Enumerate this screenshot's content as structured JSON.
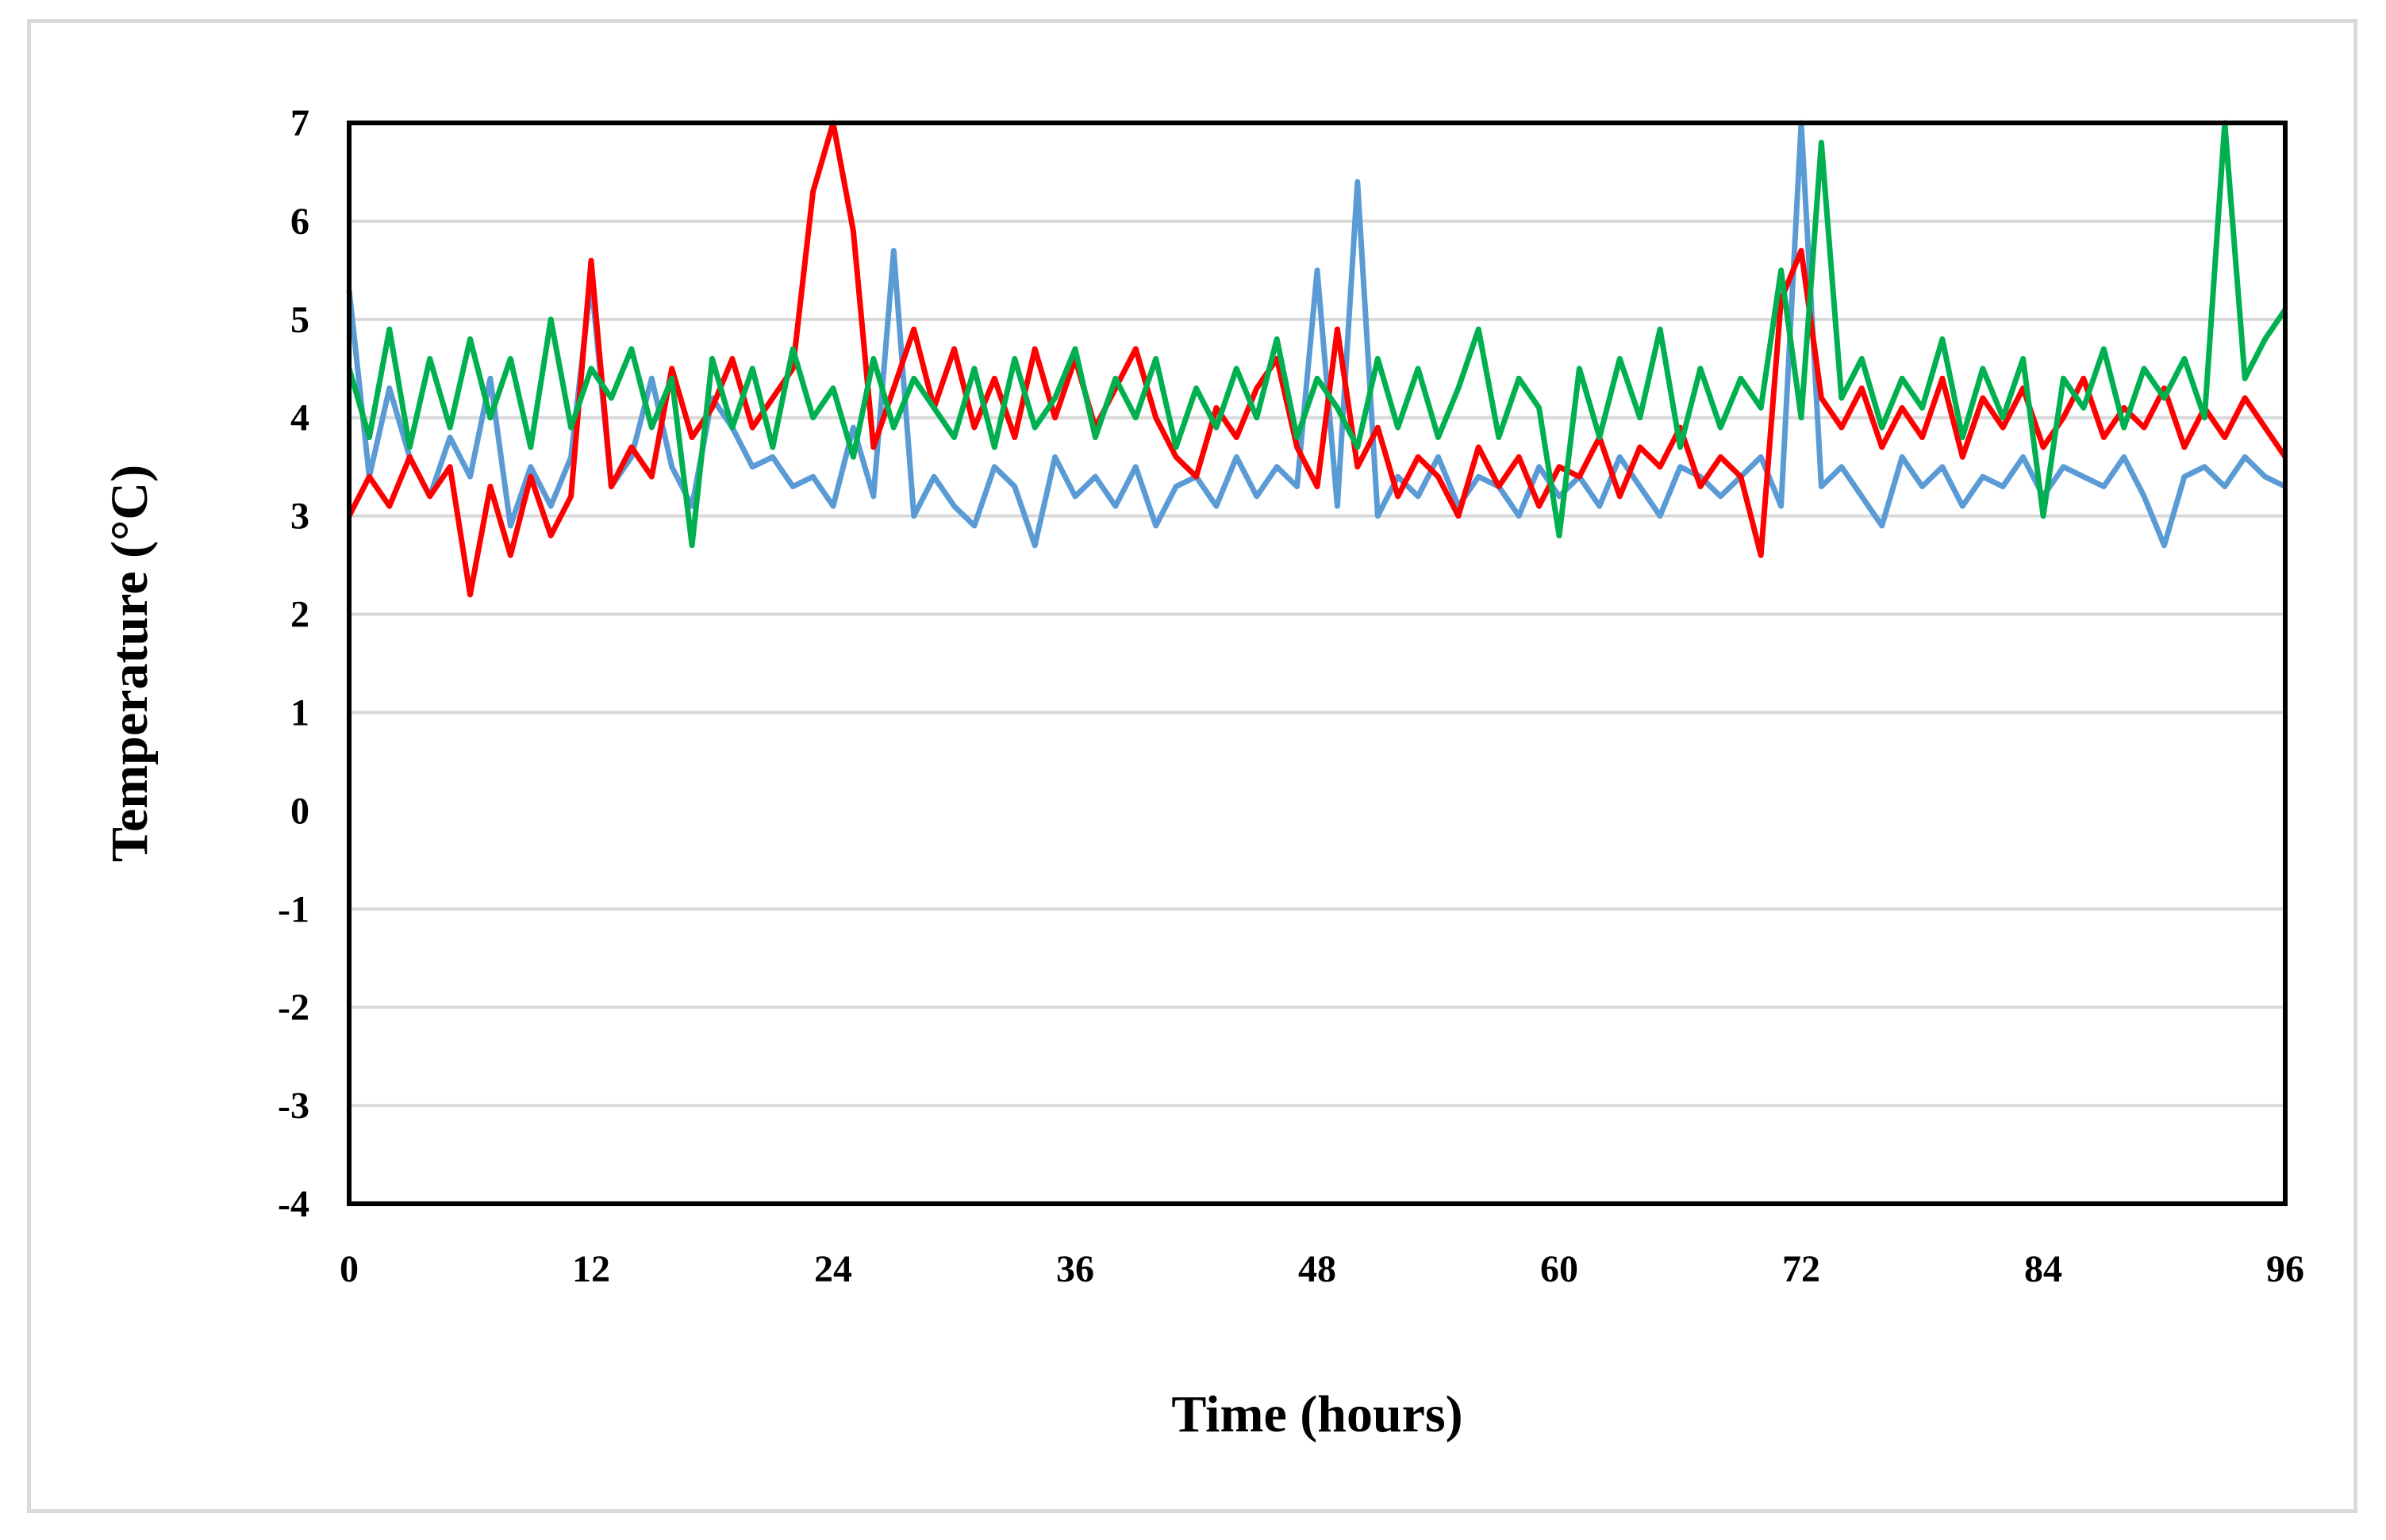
{
  "chart_data": {
    "type": "line",
    "title": "",
    "xlabel": "Time (hours)",
    "ylabel": "Temperature (°C)",
    "xlim": [
      0,
      96
    ],
    "ylim": [
      -4,
      7
    ],
    "x_ticks": [
      "0",
      "12",
      "24",
      "36",
      "48",
      "60",
      "72",
      "84",
      "96"
    ],
    "y_ticks": [
      "7",
      "6",
      "5",
      "4",
      "3",
      "2",
      "1",
      "0",
      "-1",
      "-2",
      "-3",
      "-4"
    ],
    "grid": true,
    "legend": "none",
    "colors": {
      "blue": "#5b9bd5",
      "red": "#ff0000",
      "green": "#00b050",
      "grid": "#d9d9d9",
      "frame": "#000000"
    },
    "series": [
      {
        "color": "#5b9bd5",
        "x": [
          0,
          1,
          2,
          3,
          4,
          5,
          6,
          7,
          8,
          9,
          10,
          11,
          12,
          13,
          14,
          15,
          16,
          17,
          18,
          19,
          20,
          21,
          22,
          23,
          24,
          25,
          26,
          27,
          28,
          29,
          30,
          31,
          32,
          33,
          34,
          35,
          36,
          37,
          38,
          39,
          40,
          41,
          42,
          43,
          44,
          45,
          46,
          47,
          48,
          49,
          50,
          51,
          52,
          53,
          54,
          55,
          56,
          57,
          58,
          59,
          60,
          61,
          62,
          63,
          64,
          65,
          66,
          67,
          68,
          69,
          70,
          71,
          72,
          73,
          74,
          75,
          76,
          77,
          78,
          79,
          80,
          81,
          82,
          83,
          84,
          85,
          86,
          87,
          88,
          89,
          90,
          91,
          92,
          93,
          94,
          95,
          96
        ],
        "values": [
          5.3,
          3.4,
          4.3,
          3.6,
          3.2,
          3.8,
          3.4,
          4.4,
          2.9,
          3.5,
          3.1,
          3.6,
          5.4,
          3.3,
          3.6,
          4.4,
          3.5,
          3.1,
          4.2,
          3.9,
          3.5,
          3.6,
          3.3,
          3.4,
          3.1,
          3.9,
          3.2,
          5.7,
          3.0,
          3.4,
          3.1,
          2.9,
          3.5,
          3.3,
          2.7,
          3.6,
          3.2,
          3.4,
          3.1,
          3.5,
          2.9,
          3.3,
          3.4,
          3.1,
          3.6,
          3.2,
          3.5,
          3.3,
          5.5,
          3.1,
          6.4,
          3.0,
          3.4,
          3.2,
          3.6,
          3.1,
          3.4,
          3.3,
          3.0,
          3.5,
          3.2,
          3.4,
          3.1,
          3.6,
          3.3,
          3.0,
          3.5,
          3.4,
          3.2,
          3.4,
          3.6,
          3.1,
          7.0,
          3.3,
          3.5,
          3.2,
          2.9,
          3.6,
          3.3,
          3.5,
          3.1,
          3.4,
          3.3,
          3.6,
          3.2,
          3.5,
          3.4,
          3.3,
          3.6,
          3.2,
          2.7,
          3.4,
          3.5,
          3.3,
          3.6,
          3.4,
          3.3
        ]
      },
      {
        "color": "#ff0000",
        "x": [
          0,
          1,
          2,
          3,
          4,
          5,
          6,
          7,
          8,
          9,
          10,
          11,
          12,
          13,
          14,
          15,
          16,
          17,
          18,
          19,
          20,
          21,
          22,
          23,
          24,
          25,
          26,
          27,
          28,
          29,
          30,
          31,
          32,
          33,
          34,
          35,
          36,
          37,
          38,
          39,
          40,
          41,
          42,
          43,
          44,
          45,
          46,
          47,
          48,
          49,
          50,
          51,
          52,
          53,
          54,
          55,
          56,
          57,
          58,
          59,
          60,
          61,
          62,
          63,
          64,
          65,
          66,
          67,
          68,
          69,
          70,
          71,
          72,
          73,
          74,
          75,
          76,
          77,
          78,
          79,
          80,
          81,
          82,
          83,
          84,
          85,
          86,
          87,
          88,
          89,
          90,
          91,
          92,
          93,
          94,
          95,
          96
        ],
        "values": [
          3.0,
          3.4,
          3.1,
          3.6,
          3.2,
          3.5,
          2.2,
          3.3,
          2.6,
          3.4,
          2.8,
          3.2,
          5.6,
          3.3,
          3.7,
          3.4,
          4.5,
          3.8,
          4.1,
          4.6,
          3.9,
          4.2,
          4.5,
          6.3,
          7.0,
          5.9,
          3.7,
          4.3,
          4.9,
          4.1,
          4.7,
          3.9,
          4.4,
          3.8,
          4.7,
          4.0,
          4.6,
          3.9,
          4.3,
          4.7,
          4.0,
          3.6,
          3.4,
          4.1,
          3.8,
          4.3,
          4.6,
          3.7,
          3.3,
          4.9,
          3.5,
          3.9,
          3.2,
          3.6,
          3.4,
          3.0,
          3.7,
          3.3,
          3.6,
          3.1,
          3.5,
          3.4,
          3.8,
          3.2,
          3.7,
          3.5,
          3.9,
          3.3,
          3.6,
          3.4,
          2.6,
          5.2,
          5.7,
          4.2,
          3.9,
          4.3,
          3.7,
          4.1,
          3.8,
          4.4,
          3.6,
          4.2,
          3.9,
          4.3,
          3.7,
          4.0,
          4.4,
          3.8,
          4.1,
          3.9,
          4.3,
          3.7,
          4.1,
          3.8,
          4.2,
          3.9,
          3.6
        ]
      },
      {
        "color": "#00b050",
        "x": [
          0,
          1,
          2,
          3,
          4,
          5,
          6,
          7,
          8,
          9,
          10,
          11,
          12,
          13,
          14,
          15,
          16,
          17,
          18,
          19,
          20,
          21,
          22,
          23,
          24,
          25,
          26,
          27,
          28,
          29,
          30,
          31,
          32,
          33,
          34,
          35,
          36,
          37,
          38,
          39,
          40,
          41,
          42,
          43,
          44,
          45,
          46,
          47,
          48,
          49,
          50,
          51,
          52,
          53,
          54,
          55,
          56,
          57,
          58,
          59,
          60,
          61,
          62,
          63,
          64,
          65,
          66,
          67,
          68,
          69,
          70,
          71,
          72,
          73,
          74,
          75,
          76,
          77,
          78,
          79,
          80,
          81,
          82,
          83,
          84,
          85,
          86,
          87,
          88,
          89,
          90,
          91,
          92,
          93,
          94,
          95,
          96
        ],
        "values": [
          4.5,
          3.8,
          4.9,
          3.7,
          4.6,
          3.9,
          4.8,
          4.0,
          4.6,
          3.7,
          5.0,
          3.9,
          4.5,
          4.2,
          4.7,
          3.9,
          4.4,
          2.7,
          4.6,
          3.9,
          4.5,
          3.7,
          4.7,
          4.0,
          4.3,
          3.6,
          4.6,
          3.9,
          4.4,
          4.1,
          3.8,
          4.5,
          3.7,
          4.6,
          3.9,
          4.2,
          4.7,
          3.8,
          4.4,
          4.0,
          4.6,
          3.7,
          4.3,
          3.9,
          4.5,
          4.0,
          4.8,
          3.8,
          4.4,
          4.1,
          3.7,
          4.6,
          3.9,
          4.5,
          3.8,
          4.3,
          4.9,
          3.8,
          4.4,
          4.1,
          2.8,
          4.5,
          3.8,
          4.6,
          4.0,
          4.9,
          3.7,
          4.5,
          3.9,
          4.4,
          4.1,
          5.5,
          4.0,
          6.8,
          4.2,
          4.6,
          3.9,
          4.4,
          4.1,
          4.8,
          3.8,
          4.5,
          4.0,
          4.6,
          3.0,
          4.4,
          4.1,
          4.7,
          3.9,
          4.5,
          4.2,
          4.6,
          4.0,
          7.0,
          4.4,
          4.8,
          5.1
        ]
      }
    ]
  }
}
